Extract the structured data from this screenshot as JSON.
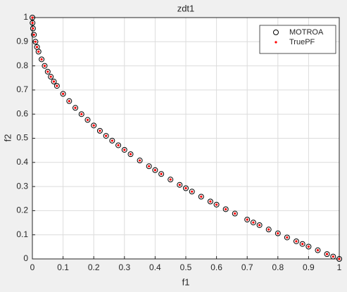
{
  "chart_data": {
    "type": "scatter",
    "title": "zdt1",
    "xlabel": "f1",
    "ylabel": "f2",
    "xlim": [
      0,
      1
    ],
    "ylim": [
      0,
      1
    ],
    "xticks": [
      0,
      0.1,
      0.2,
      0.3,
      0.4,
      0.5,
      0.6,
      0.7,
      0.8,
      0.9,
      1
    ],
    "yticks": [
      0,
      0.1,
      0.2,
      0.3,
      0.4,
      0.5,
      0.6,
      0.7,
      0.8,
      0.9,
      1
    ],
    "grid": true,
    "legend": "northeast",
    "series": [
      {
        "name": "MOTROA",
        "color": "#000000",
        "marker": "circle",
        "x": [
          0,
          0.0005,
          0.002,
          0.005,
          0.01,
          0.015,
          0.02,
          0.03,
          0.04,
          0.05,
          0.06,
          0.07,
          0.08,
          0.1,
          0.12,
          0.14,
          0.16,
          0.18,
          0.2,
          0.22,
          0.24,
          0.26,
          0.28,
          0.3,
          0.32,
          0.35,
          0.38,
          0.4,
          0.42,
          0.45,
          0.48,
          0.5,
          0.52,
          0.55,
          0.58,
          0.6,
          0.63,
          0.66,
          0.7,
          0.72,
          0.74,
          0.77,
          0.8,
          0.83,
          0.86,
          0.88,
          0.9,
          0.93,
          0.96,
          0.98,
          1
        ],
        "values": [
          1,
          0.978,
          0.955,
          0.929,
          0.9,
          0.878,
          0.859,
          0.827,
          0.8,
          0.776,
          0.755,
          0.735,
          0.717,
          0.684,
          0.654,
          0.626,
          0.6,
          0.576,
          0.553,
          0.531,
          0.51,
          0.49,
          0.471,
          0.452,
          0.434,
          0.408,
          0.384,
          0.368,
          0.352,
          0.329,
          0.307,
          0.293,
          0.279,
          0.258,
          0.238,
          0.225,
          0.206,
          0.188,
          0.163,
          0.151,
          0.14,
          0.122,
          0.106,
          0.089,
          0.073,
          0.062,
          0.051,
          0.036,
          0.02,
          0.01,
          0
        ]
      },
      {
        "name": "TruePF",
        "color": "#ff0000",
        "marker": "dot",
        "x": [
          0,
          0.0005,
          0.002,
          0.005,
          0.01,
          0.015,
          0.02,
          0.03,
          0.04,
          0.05,
          0.06,
          0.07,
          0.08,
          0.1,
          0.12,
          0.14,
          0.16,
          0.18,
          0.2,
          0.22,
          0.24,
          0.26,
          0.28,
          0.3,
          0.32,
          0.35,
          0.38,
          0.4,
          0.42,
          0.45,
          0.48,
          0.5,
          0.52,
          0.55,
          0.58,
          0.6,
          0.63,
          0.66,
          0.7,
          0.72,
          0.74,
          0.77,
          0.8,
          0.83,
          0.86,
          0.88,
          0.9,
          0.93,
          0.96,
          0.98,
          1
        ],
        "values": [
          1,
          0.978,
          0.955,
          0.929,
          0.9,
          0.878,
          0.859,
          0.827,
          0.8,
          0.776,
          0.755,
          0.735,
          0.717,
          0.684,
          0.654,
          0.626,
          0.6,
          0.576,
          0.553,
          0.531,
          0.51,
          0.49,
          0.471,
          0.452,
          0.434,
          0.408,
          0.384,
          0.368,
          0.352,
          0.329,
          0.307,
          0.293,
          0.279,
          0.258,
          0.238,
          0.225,
          0.206,
          0.188,
          0.163,
          0.151,
          0.14,
          0.122,
          0.106,
          0.089,
          0.073,
          0.062,
          0.051,
          0.036,
          0.02,
          0.01,
          0
        ]
      }
    ]
  }
}
